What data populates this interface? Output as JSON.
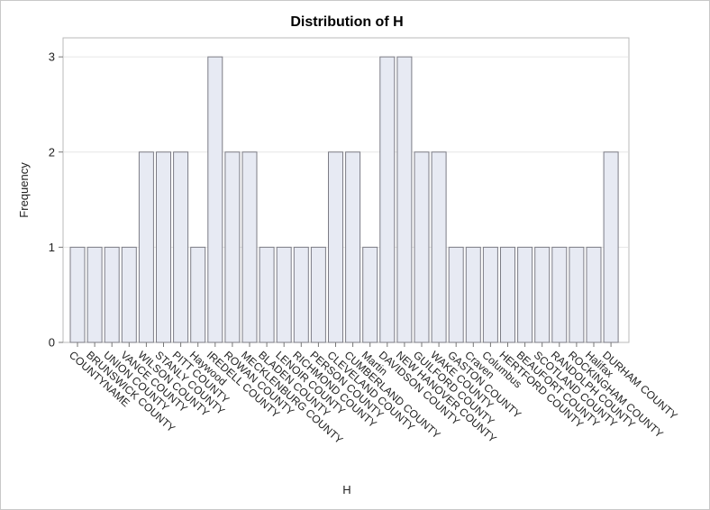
{
  "chart_data": {
    "type": "bar",
    "title": "Distribution of H",
    "xlabel": "H",
    "ylabel": "Frequency",
    "ylim": [
      0,
      3.2
    ],
    "yticks": [
      0,
      1,
      2,
      3
    ],
    "grid": true,
    "bar_color": "#e7eaf3",
    "bar_edge_color": "#7c7c85",
    "categories": [
      "COUNTYNAME",
      "BRUNSWICK COUNTY",
      "UNION COUNTY",
      "VANCE COUNTY",
      "WILSON COUNTY",
      "STANLY COUNTY",
      "PITT COUNTY",
      "Haywood",
      "IREDELL COUNTY",
      "ROWAN COUNTY",
      "MECKLENBURG COUNTY",
      "BLADEN COUNTY",
      "LENOIR COUNTY",
      "RICHMOND COUNTY",
      "PERSON COUNTY",
      "CLEVELAND COUNTY",
      "CUMBERLAND COUNTY",
      "Martin",
      "DAVIDSON COUNTY",
      "NEW HANOVER COUNTY",
      "GUILFORD COUNTY",
      "WAKE COUNTY",
      "GASTON COUNTY",
      "Craven",
      "Columbus",
      "HERTFORD COUNTY",
      "BEAUFORT COUNTY",
      "SCOTLAND COUNTY",
      "RANDOLPH COUNTY",
      "ROCKINGHAM COUNTY",
      "Halifax",
      "DURHAM COUNTY"
    ],
    "values": [
      1,
      1,
      1,
      1,
      2,
      2,
      2,
      1,
      3,
      2,
      2,
      1,
      1,
      1,
      1,
      2,
      2,
      1,
      3,
      3,
      2,
      2,
      1,
      1,
      1,
      1,
      1,
      1,
      1,
      1,
      1,
      2
    ]
  }
}
